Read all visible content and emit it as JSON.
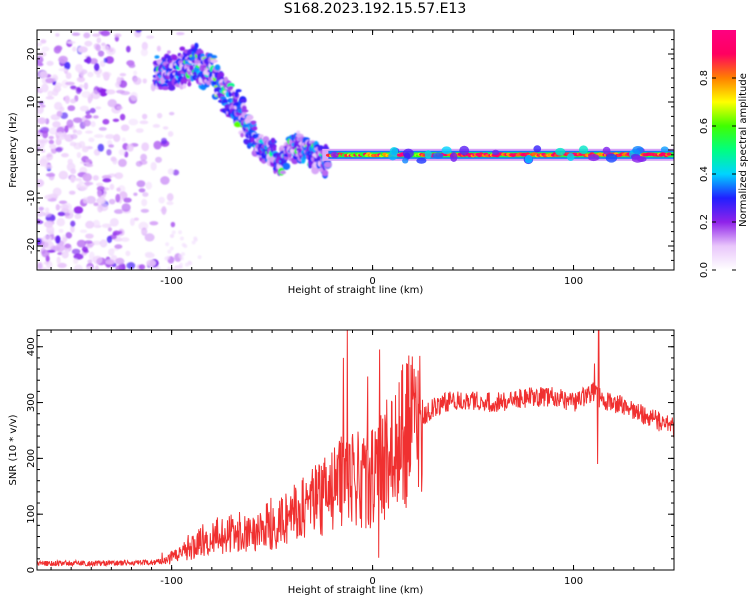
{
  "title": "S168.2023.192.15.57.E13",
  "colors": {
    "snr_line": "#f03030",
    "frame": "#000000"
  },
  "chart_data": [
    {
      "type": "heatmap",
      "xlabel": "Height of straight line (km)",
      "ylabel": "Frequency (Hz)",
      "xlim": [
        -167,
        150
      ],
      "ylim": [
        -25,
        25
      ],
      "xticks": [
        -100,
        0,
        100
      ],
      "yticks": [
        -20,
        -10,
        0,
        10,
        20
      ],
      "colorbar": {
        "label": "Normalized spectral amplitude",
        "range": [
          0,
          1
        ],
        "ticks": [
          0.0,
          0.2,
          0.4,
          0.6,
          0.8
        ],
        "colormap": [
          "#ffffff",
          "#e9c6fb",
          "#8f22ea",
          "#2020ff",
          "#00d4ff",
          "#00ff80",
          "#40ff00",
          "#ffff00",
          "#ff8000",
          "#ff0060",
          "#ff0080"
        ]
      },
      "ridge": {
        "x": [
          -105,
          -95,
          -88,
          -82,
          -76,
          -70,
          -65,
          -60,
          -55,
          -50,
          -45,
          -40,
          -35,
          -30,
          -25,
          -20,
          -15,
          -10,
          -5,
          0,
          10,
          30,
          60,
          100,
          150
        ],
        "freq": [
          16,
          17,
          18,
          17,
          13,
          10,
          7,
          3,
          0,
          -1,
          -2,
          0,
          1,
          -1,
          -2,
          -2,
          -1,
          -1,
          0,
          -1,
          -1,
          -1,
          -1,
          -1,
          -1
        ]
      },
      "noise_region_x": [
        -167,
        -105
      ]
    },
    {
      "type": "line",
      "xlabel": "Height of straight line (km)",
      "ylabel": "SNR (10 * v/v)",
      "xlim": [
        -167,
        150
      ],
      "ylim": [
        0,
        430
      ],
      "xticks": [
        -100,
        0,
        100
      ],
      "yticks": [
        0,
        100,
        200,
        300,
        400
      ],
      "series": [
        {
          "x": [
            -167,
            -140,
            -110,
            -100,
            -90,
            -80,
            -70,
            -60,
            -50,
            -40,
            -30,
            -20,
            -15,
            -10,
            -5,
            0,
            5,
            10,
            15,
            20,
            25,
            30,
            40,
            50,
            60,
            70,
            80,
            90,
            100,
            105,
            110,
            115,
            120,
            130,
            140,
            150
          ],
          "values": [
            12,
            12,
            13,
            20,
            40,
            60,
            65,
            70,
            80,
            100,
            120,
            140,
            160,
            180,
            150,
            170,
            190,
            210,
            240,
            260,
            275,
            290,
            305,
            305,
            300,
            305,
            310,
            310,
            300,
            310,
            320,
            300,
            300,
            285,
            270,
            255
          ]
        }
      ],
      "spikes": [
        {
          "x": -12.5,
          "y": 430
        },
        {
          "x": -14.5,
          "y": 380
        },
        {
          "x": 3.5,
          "y": 395
        },
        {
          "x": 3.0,
          "y": 22
        },
        {
          "x": 112.5,
          "y": 430
        },
        {
          "x": 110.5,
          "y": 370
        },
        {
          "x": 112.0,
          "y": 190
        }
      ]
    }
  ]
}
